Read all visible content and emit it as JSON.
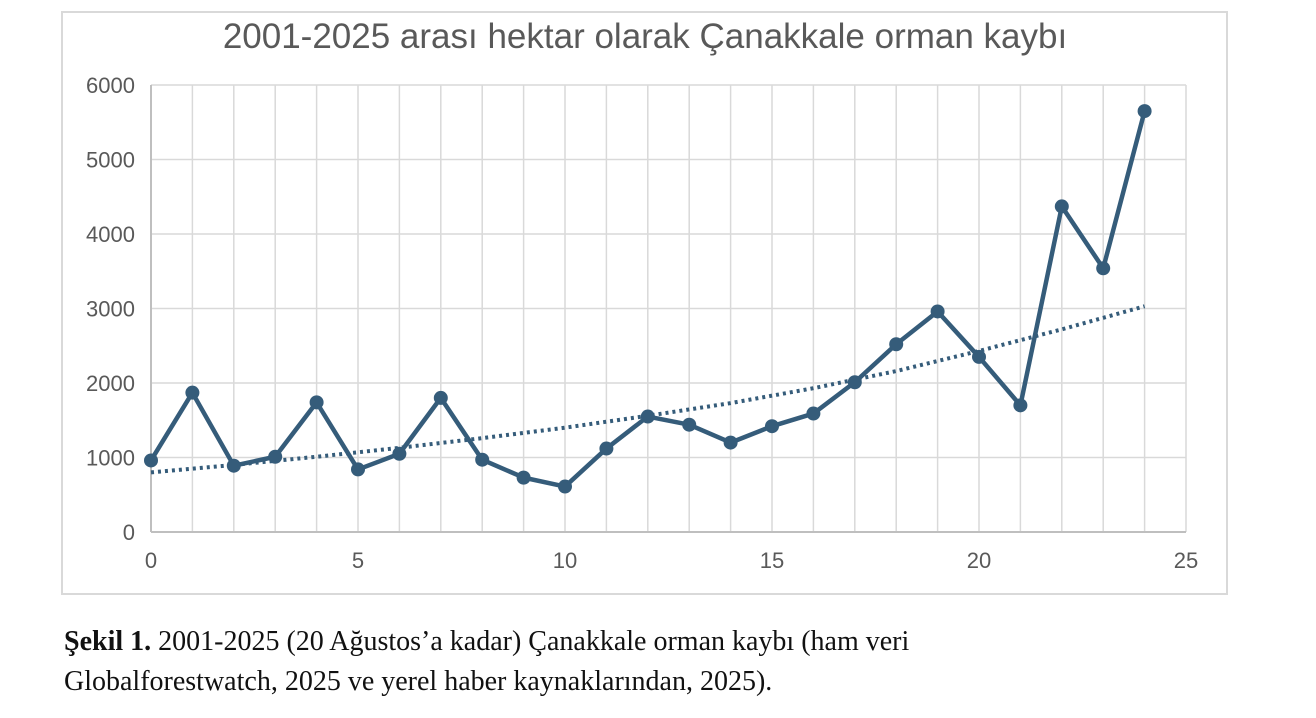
{
  "chart_data": {
    "type": "line",
    "title": "2001-2025 arası hektar olarak Çanakkale orman kaybı",
    "xlabel": "",
    "ylabel": "",
    "xlim": [
      0,
      25
    ],
    "ylim": [
      0,
      6000
    ],
    "x_ticks": [
      "0",
      "5",
      "10",
      "15",
      "20",
      "25"
    ],
    "y_ticks": [
      "0",
      "1000",
      "2000",
      "3000",
      "4000",
      "5000",
      "6000"
    ],
    "grid": true,
    "legend": "none",
    "series": [
      {
        "x": [
          0,
          1,
          2,
          3,
          4,
          5,
          6,
          7,
          8,
          9,
          10,
          11,
          12,
          13,
          14,
          15,
          16,
          17,
          18,
          19,
          20,
          21,
          22,
          23,
          24
        ],
        "values": [
          960,
          1870,
          890,
          1010,
          1740,
          840,
          1050,
          1800,
          970,
          730,
          610,
          1120,
          1550,
          1440,
          1200,
          1420,
          1590,
          2010,
          2520,
          2960,
          2350,
          1700,
          4370,
          3540,
          5650
        ],
        "color": "#355c7a",
        "marker": "circle"
      }
    ],
    "trendline": {
      "type": "exponential",
      "style": "dotted",
      "color": "#355c7a",
      "x": [
        0,
        2,
        4,
        6,
        8,
        10,
        12,
        14,
        16,
        18,
        20,
        22,
        24
      ],
      "values": [
        800,
        900,
        1010,
        1130,
        1260,
        1400,
        1560,
        1730,
        1930,
        2160,
        2430,
        2720,
        3030
      ]
    },
    "colors": {
      "line": "#355c7a",
      "grid": "#d9d9d9",
      "axis_text": "#595959",
      "title_text": "#595959",
      "frame": "#d9d9d9"
    }
  },
  "caption": {
    "label": "Şekil 1.",
    "line1": " 2001-2025 (20 Ağustos’a kadar) Çanakkale orman kaybı (ham veri",
    "line2": "Globalforestwatch, 2025 ve yerel haber kaynaklarından, 2025)."
  }
}
